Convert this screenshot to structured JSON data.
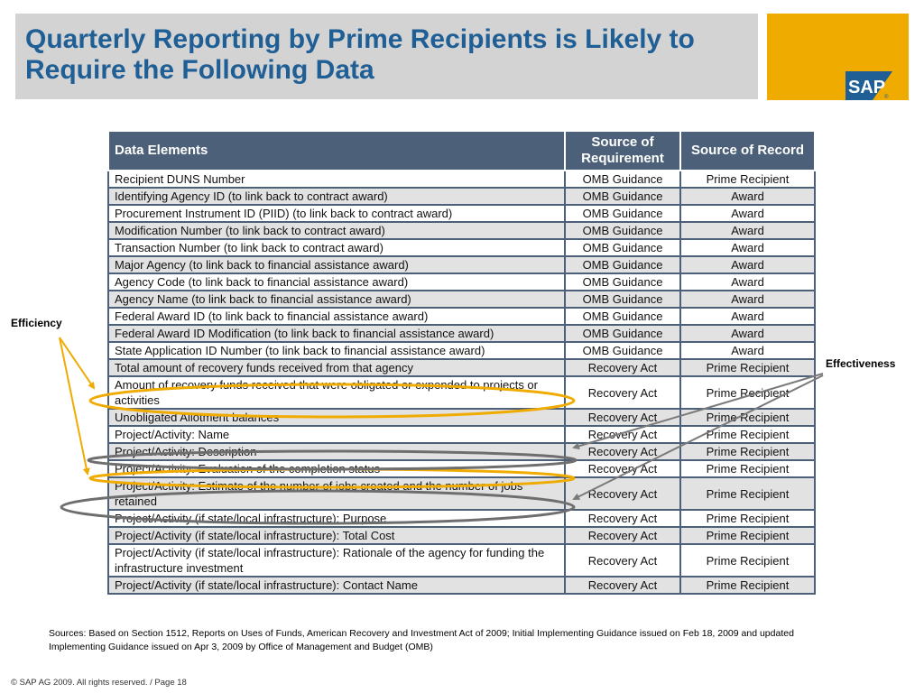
{
  "title": "Quarterly Reporting by Prime Recipients is Likely to Require the Following Data",
  "logo": {
    "text": "SAP",
    "mark": "®",
    "color": "#f0ab00",
    "brand_blue": "#1f5f95"
  },
  "table": {
    "headers": [
      "Data Elements",
      "Source of Requirement",
      "Source of Record"
    ],
    "rows": [
      [
        "Recipient DUNS Number",
        "OMB Guidance",
        "Prime Recipient"
      ],
      [
        "Identifying Agency ID (to link back to contract award)",
        "OMB Guidance",
        "Award"
      ],
      [
        "Procurement Instrument ID (PIID) (to link back to contract award)",
        "OMB Guidance",
        "Award"
      ],
      [
        "Modification Number (to link back to contract award)",
        "OMB Guidance",
        "Award"
      ],
      [
        "Transaction Number (to link back to contract award)",
        "OMB Guidance",
        "Award"
      ],
      [
        "Major Agency (to link back to financial assistance award)",
        "OMB Guidance",
        "Award"
      ],
      [
        "Agency Code (to link back to financial assistance award)",
        "OMB Guidance",
        "Award"
      ],
      [
        "Agency Name (to link back to financial assistance award)",
        "OMB Guidance",
        "Award"
      ],
      [
        "Federal Award ID (to link back to financial assistance award)",
        "OMB Guidance",
        "Award"
      ],
      [
        "Federal Award ID Modification (to link back to financial assistance award)",
        "OMB Guidance",
        "Award"
      ],
      [
        "State Application ID Number (to link back to financial assistance award)",
        "OMB Guidance",
        "Award"
      ],
      [
        "Total amount of recovery funds received from that agency",
        "Recovery Act",
        "Prime Recipient"
      ],
      [
        "Amount of recovery funds received that were obligated or expended to projects or activities",
        "Recovery Act",
        "Prime Recipient"
      ],
      [
        "Unobligated Allotment balances",
        "Recovery Act",
        "Prime Recipient"
      ],
      [
        "Project/Activity: Name",
        "Recovery Act",
        "Prime Recipient"
      ],
      [
        "Project/Activity: Description",
        "Recovery Act",
        "Prime Recipient"
      ],
      [
        "Project/Activity: Evaluation of the completion status",
        "Recovery Act",
        "Prime Recipient"
      ],
      [
        "Project/Activity: Estimate of the number of jobs created and the number of jobs retained",
        "Recovery Act",
        "Prime Recipient"
      ],
      [
        "Project/Activity (if state/local infrastructure): Purpose",
        "Recovery Act",
        "Prime Recipient"
      ],
      [
        "Project/Activity (if state/local infrastructure): Total Cost",
        "Recovery Act",
        "Prime Recipient"
      ],
      [
        "Project/Activity (if state/local infrastructure): Rationale of the agency for funding the infrastructure investment",
        "Recovery Act",
        "Prime Recipient"
      ],
      [
        "Project/Activity (if state/local infrastructure): Contact Name",
        "Recovery Act",
        "Prime Recipient"
      ]
    ]
  },
  "callouts": {
    "efficiency": "Efficiency",
    "effectiveness": "Effectiveness"
  },
  "sources": "Sources: Based on Section 1512, Reports on Uses of Funds, American Recovery and Investment Act of 2009; Initial Implementing Guidance issued on Feb 18, 2009 and updated Implementing Guidance issued on Apr 3, 2009 by Office of Management and Budget (OMB)",
  "footer": "© SAP AG 2009. All rights reserved. / Page 18",
  "colors": {
    "header_bg": "#4c6179",
    "row_alt": "#e2e2e2",
    "efficiency_highlight": "#f0ab00",
    "effectiveness_highlight": "#6e6e6e"
  }
}
